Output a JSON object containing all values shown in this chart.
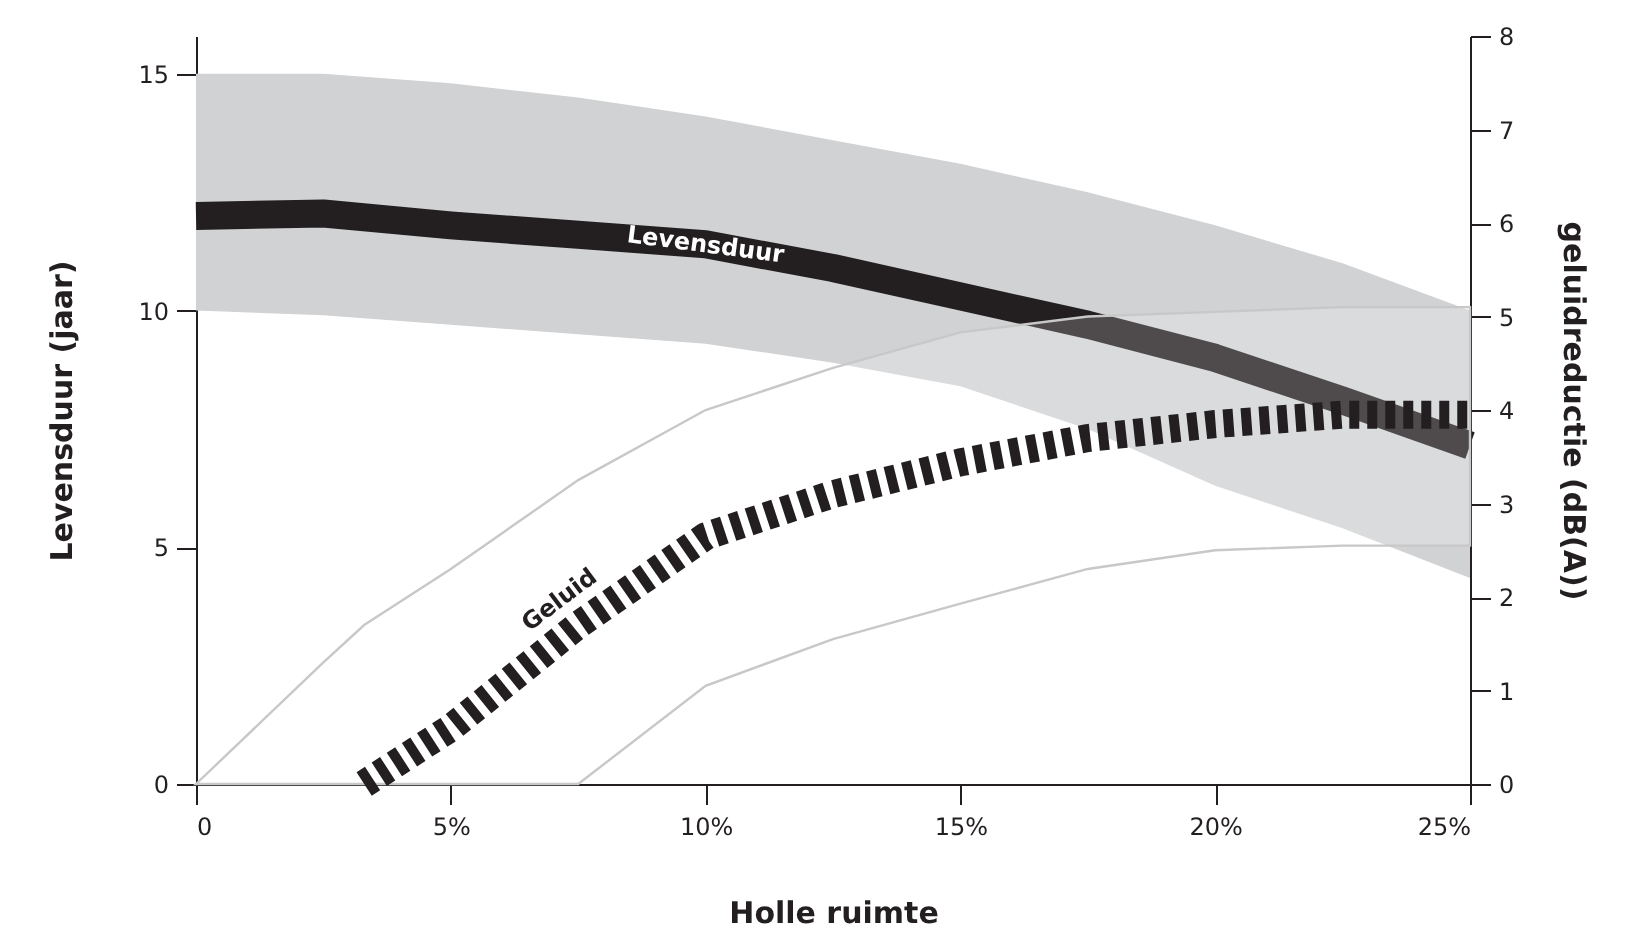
{
  "chart_data": {
    "type": "line",
    "xlabel": "Holle ruimte",
    "ylabel": "Levensduur (jaar)",
    "y2label": "geluidreductie (dB(A))",
    "xlim": [
      0,
      25
    ],
    "xticks": [
      0,
      {
        "value": 5,
        "label": "5%"
      },
      {
        "value": 10,
        "label": "10%"
      },
      {
        "value": 15,
        "label": "15%"
      },
      {
        "value": 20,
        "label": "20%"
      },
      {
        "value": 25,
        "label": "25%"
      }
    ],
    "ylim": [
      0,
      15.8
    ],
    "yticks": [
      0,
      5,
      10,
      15
    ],
    "y2lim": [
      0,
      8
    ],
    "y2ticks": [
      0,
      1,
      2,
      3,
      4,
      5,
      6,
      7,
      8
    ],
    "grid": false,
    "series": [
      {
        "name": "Levensduur",
        "color": "#231f20",
        "x": [
          0,
          2.5,
          5,
          7.5,
          10,
          12.5,
          15,
          17.5,
          20,
          22.5,
          25
        ],
        "values": [
          12,
          12.05,
          11.8,
          11.6,
          11.4,
          10.9,
          10.3,
          9.7,
          9.0,
          8.1,
          7.15
        ],
        "lower": [
          10,
          9.9,
          9.7,
          9.5,
          9.3,
          8.9,
          8.4,
          7.5,
          6.3,
          5.4,
          4.35
        ],
        "upper": [
          15,
          15,
          14.8,
          14.5,
          14.1,
          13.6,
          13.1,
          12.5,
          11.8,
          11.0,
          10.0
        ]
      },
      {
        "name": "Geluid",
        "color": "#231f20",
        "axis": "y2",
        "line_style": "dashed",
        "x": [
          0,
          2.5,
          3.3,
          5,
          7.5,
          10,
          12.5,
          15,
          17.5,
          20,
          22.5,
          25
        ],
        "values": [
          null,
          null,
          0,
          0.6,
          1.7,
          2.65,
          3.1,
          3.44,
          3.7,
          3.85,
          3.95,
          3.95
        ],
        "lower": [
          0,
          0,
          0,
          0,
          0,
          1.05,
          1.55,
          1.93,
          2.3,
          2.5,
          2.55,
          2.55
        ],
        "upper": [
          0,
          1.3,
          1.7,
          2.3,
          3.25,
          4.0,
          4.45,
          4.83,
          5.0,
          5.05,
          5.1,
          5.1
        ]
      }
    ]
  }
}
